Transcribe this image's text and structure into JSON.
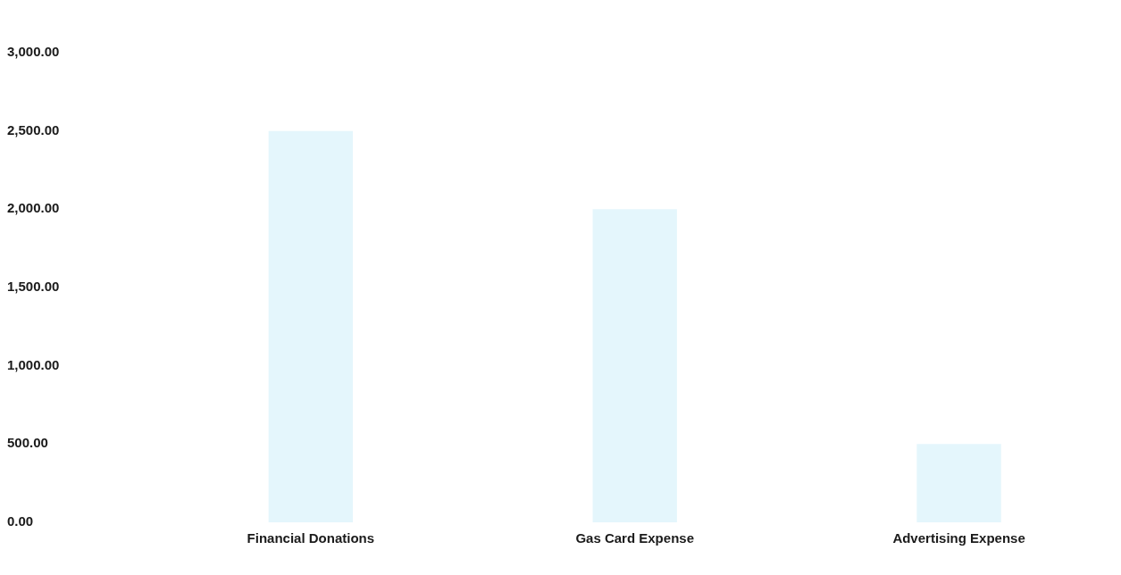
{
  "chart_data": {
    "type": "bar",
    "categories": [
      "Financial Donations",
      "Gas Card Expense",
      "Advertising Expense"
    ],
    "values": [
      2500,
      2000,
      500
    ],
    "color": "#e4f6fc",
    "ylim": [
      0,
      3000
    ],
    "yticks": [
      {
        "value": 0,
        "label": "0.00"
      },
      {
        "value": 500,
        "label": "500.00"
      },
      {
        "value": 1000,
        "label": "1,000.00"
      },
      {
        "value": 1500,
        "label": "1,500.00"
      },
      {
        "value": 2000,
        "label": "2,000.00"
      },
      {
        "value": 2500,
        "label": "2,500.00"
      },
      {
        "value": 3000,
        "label": "3,000.00"
      }
    ],
    "grid": false,
    "legend": false
  }
}
